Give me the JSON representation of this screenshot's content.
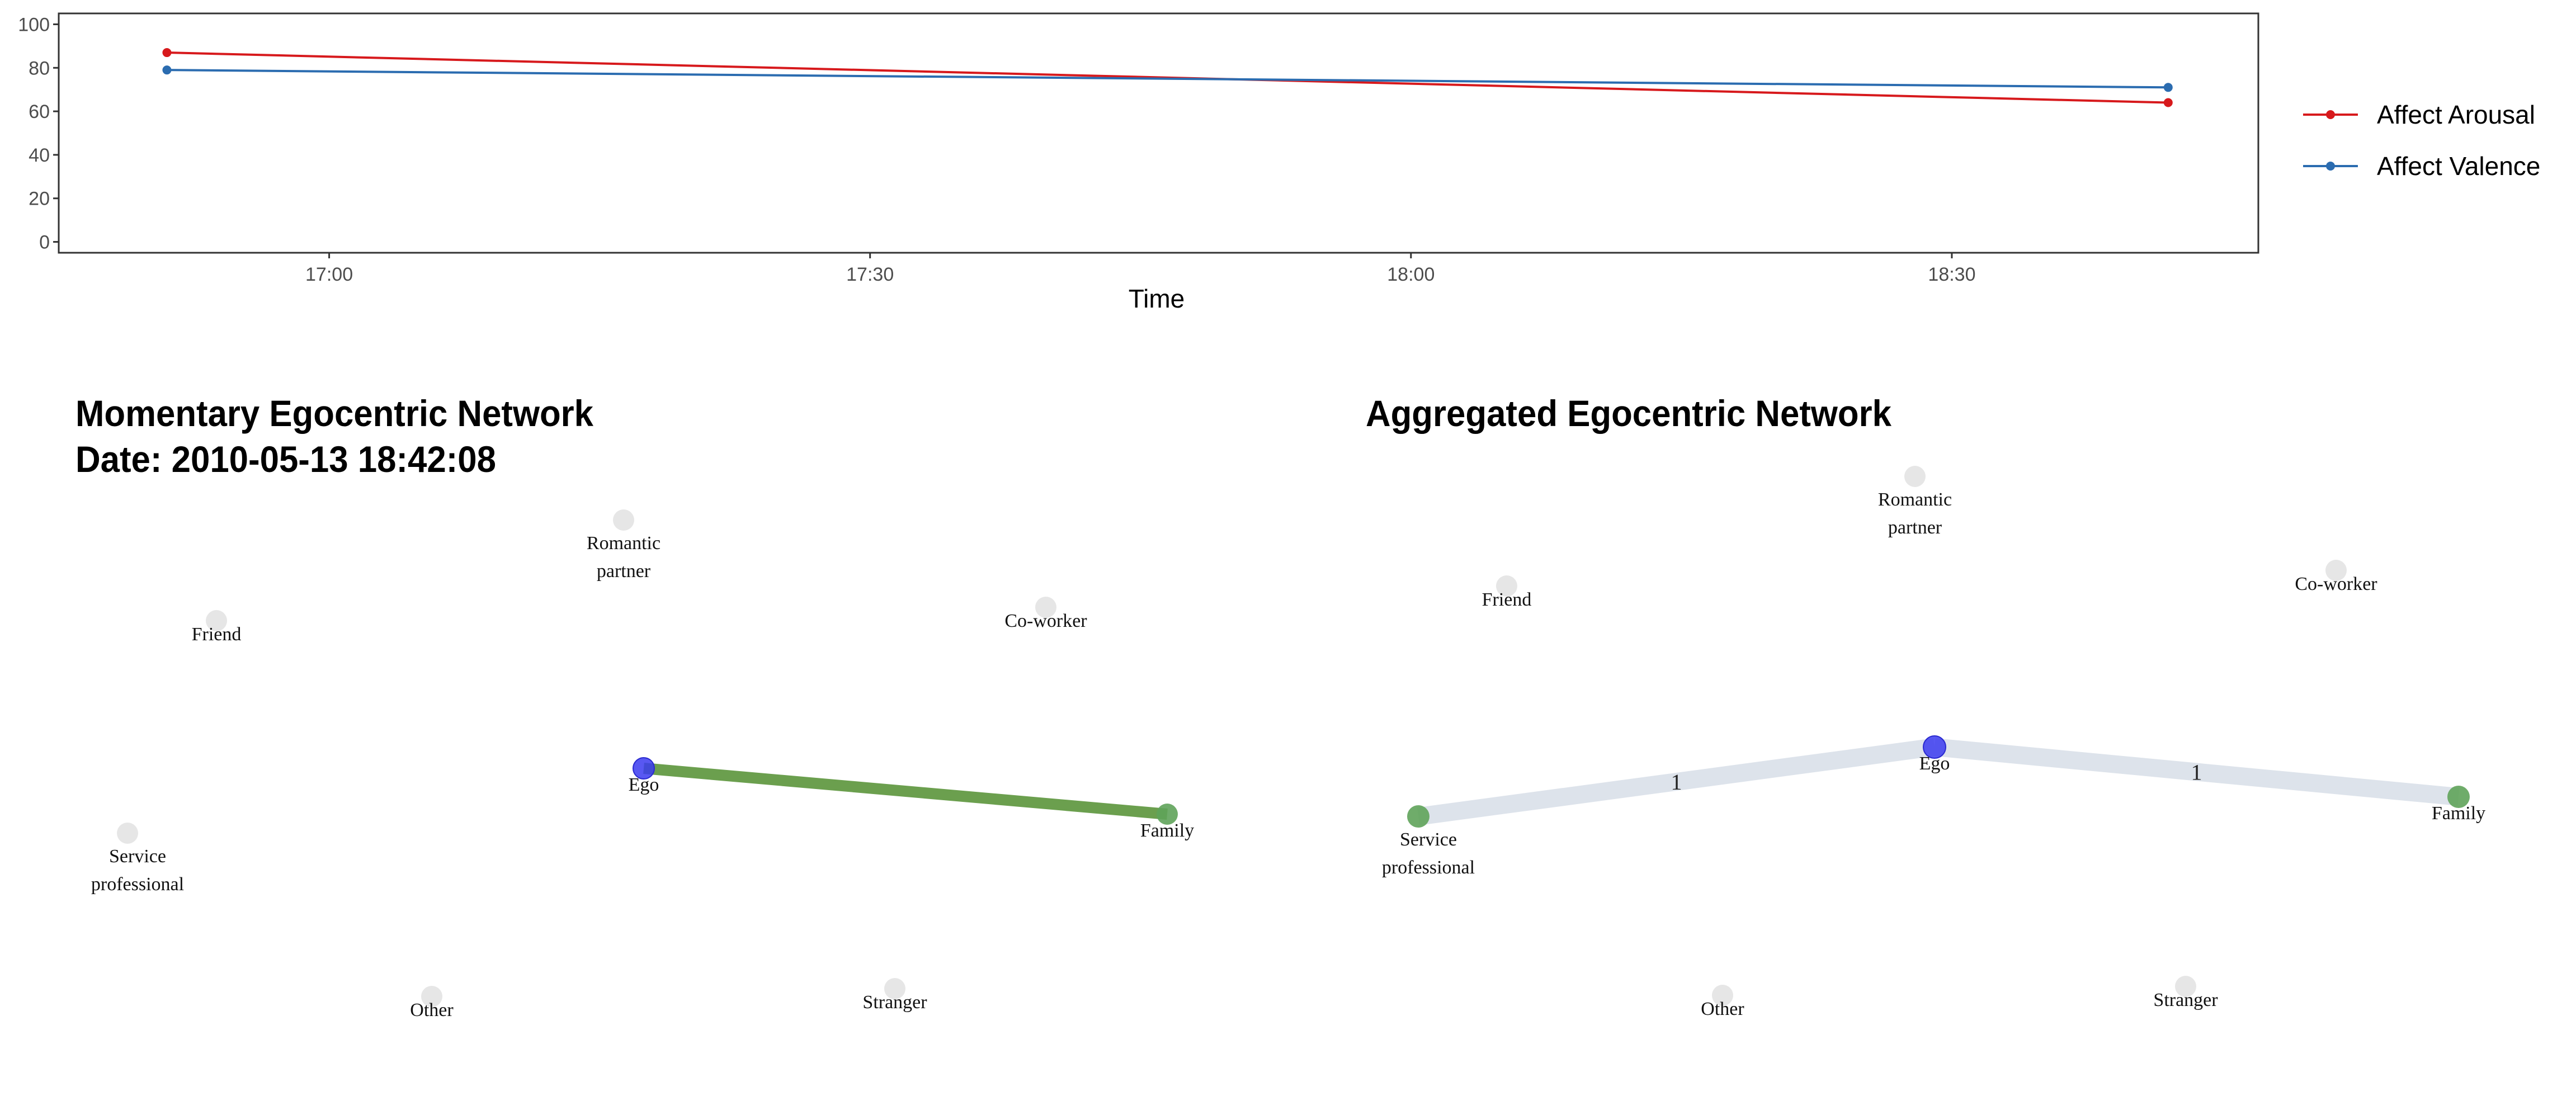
{
  "colors": {
    "arousal": "#d7191c",
    "valence": "#2b6cb0",
    "ego_node": "#3b3bf0",
    "family_node": "#5fa35a",
    "service_node": "#5fa35a",
    "inactive_node": "#e6e6e6",
    "momentary_edge": "#6b9f4e",
    "aggregated_edge": "#dde3eb"
  },
  "chart_data": {
    "type": "line",
    "xlabel": "Time",
    "ylabel": "",
    "ylim": [
      0,
      100
    ],
    "yticks": [
      "0",
      "20",
      "40",
      "60",
      "80",
      "100"
    ],
    "xticks": [
      "17:00",
      "17:30",
      "18:00",
      "18:30"
    ],
    "xlim": [
      "16:45",
      "18:47"
    ],
    "grid": false,
    "legend_position": "right",
    "series": [
      {
        "name": "Affect Arousal",
        "color_key": "arousal",
        "points": [
          {
            "x": "16:51",
            "y": 87
          },
          {
            "x": "18:42",
            "y": 64
          }
        ]
      },
      {
        "name": "Affect Valence",
        "color_key": "valence",
        "points": [
          {
            "x": "16:51",
            "y": 79
          },
          {
            "x": "18:42",
            "y": 71
          }
        ]
      }
    ]
  },
  "networks": {
    "momentary": {
      "title_line1": "Momentary Egocentric Network",
      "title_line2": "Date: 2010-05-13 18:42:08",
      "nodes": {
        "romantic": [
          "Romantic",
          "partner"
        ],
        "friend": [
          "Friend"
        ],
        "coworker": [
          "Co-worker"
        ],
        "ego": [
          "Ego"
        ],
        "family": [
          "Family"
        ],
        "service": [
          "Service",
          "professional"
        ],
        "other": [
          "Other"
        ],
        "stranger": [
          "Stranger"
        ]
      },
      "edge": {
        "from": "Ego",
        "to": "Family"
      }
    },
    "aggregated": {
      "title": "Aggregated Egocentric Network",
      "nodes": {
        "romantic": [
          "Romantic",
          "partner"
        ],
        "friend": [
          "Friend"
        ],
        "coworker": [
          "Co-worker"
        ],
        "ego": [
          "Ego"
        ],
        "family": [
          "Family"
        ],
        "service": [
          "Service",
          "professional"
        ],
        "other": [
          "Other"
        ],
        "stranger": [
          "Stranger"
        ]
      },
      "edges": [
        {
          "from": "Service professional",
          "to": "Ego",
          "weight": "1"
        },
        {
          "from": "Ego",
          "to": "Family",
          "weight": "1"
        }
      ]
    }
  }
}
